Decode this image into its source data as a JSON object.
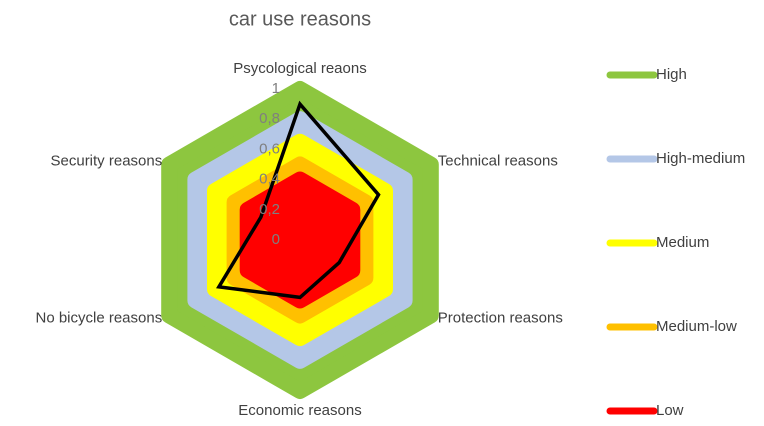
{
  "chart_data": {
    "type": "radar",
    "title": "car use reasons",
    "categories": [
      "Psycological reaons",
      "Technical reasons",
      "Protection reasons",
      "Economic reasons",
      "No bicycle reasons",
      "Security reasons"
    ],
    "series": [
      {
        "name": "High",
        "color": "#8dc63f",
        "values": [
          1,
          1,
          1,
          1,
          1,
          1
        ],
        "fill": true
      },
      {
        "name": "High-medium",
        "color": "#b4c7e7",
        "values": [
          0.8,
          0.8,
          0.8,
          0.8,
          0.8,
          0.8
        ],
        "fill": true
      },
      {
        "name": "Medium",
        "color": "#ffff00",
        "values": [
          0.65,
          0.65,
          0.65,
          0.65,
          0.65,
          0.65
        ],
        "fill": true
      },
      {
        "name": "Medium-low",
        "color": "#ffc000",
        "values": [
          0.5,
          0.5,
          0.5,
          0.5,
          0.5,
          0.5
        ],
        "fill": true
      },
      {
        "name": "Low",
        "color": "#ff0000",
        "values": [
          0.4,
          0.4,
          0.4,
          0.4,
          0.4,
          0.4
        ],
        "fill": true
      },
      {
        "color": "#000000",
        "values": [
          0.9,
          0.6,
          0.3,
          0.38,
          0.62,
          0.3
        ],
        "fill": false
      }
    ],
    "ylim": [
      0,
      1
    ],
    "yticks": [
      0,
      {
        "value": 0.2,
        "label": "0,2"
      },
      {
        "value": 0.4,
        "label": "0,4"
      },
      {
        "value": 0.6,
        "label": "0,6"
      },
      {
        "value": 0.8,
        "label": "0,8"
      },
      1
    ],
    "legend": "right"
  }
}
